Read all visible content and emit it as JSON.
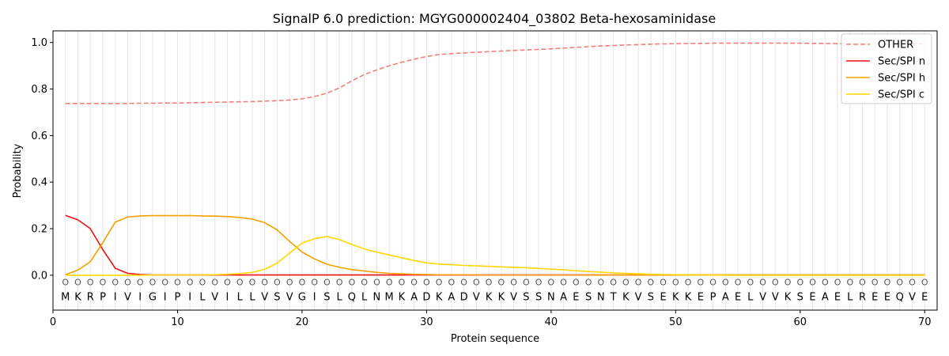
{
  "chart_data": {
    "type": "line",
    "title": "SignalP 6.0 prediction: MGYG000002404_03802 Beta-hexosaminidase",
    "xlabel": "Protein sequence",
    "ylabel": "Probability",
    "xlim": [
      0,
      71
    ],
    "ylim": [
      -0.15,
      1.05
    ],
    "x_ticks": [
      0,
      10,
      20,
      30,
      40,
      50,
      60,
      70
    ],
    "y_ticks": [
      0.0,
      0.2,
      0.4,
      0.6,
      0.8,
      1.0
    ],
    "x_tick_labels": [
      "0",
      "10",
      "20",
      "30",
      "40",
      "50",
      "60",
      "70"
    ],
    "y_tick_labels": [
      "0.0",
      "0.2",
      "0.4",
      "0.6",
      "0.8",
      "1.0"
    ],
    "legend_position": "top-right",
    "sequence": [
      "M",
      "K",
      "R",
      "P",
      "I",
      "V",
      "I",
      "G",
      "I",
      "P",
      "I",
      "L",
      "V",
      "I",
      "L",
      "L",
      "V",
      "S",
      "V",
      "G",
      "I",
      "S",
      "L",
      "Q",
      "L",
      "N",
      "M",
      "K",
      "A",
      "D",
      "K",
      "A",
      "D",
      "V",
      "K",
      "K",
      "V",
      "S",
      "S",
      "N",
      "A",
      "E",
      "S",
      "N",
      "T",
      "K",
      "V",
      "S",
      "E",
      "K",
      "K",
      "E",
      "P",
      "A",
      "E",
      "L",
      "V",
      "V",
      "K",
      "S",
      "E",
      "A",
      "E",
      "L",
      "R",
      "E",
      "E",
      "Q",
      "V",
      "E"
    ],
    "annotation_label": "O",
    "series": [
      {
        "name": "OTHER",
        "color": "#f08080",
        "dash": true,
        "values": [
          0.738,
          0.738,
          0.738,
          0.738,
          0.738,
          0.738,
          0.739,
          0.739,
          0.74,
          0.74,
          0.741,
          0.742,
          0.743,
          0.744,
          0.745,
          0.746,
          0.748,
          0.75,
          0.753,
          0.758,
          0.768,
          0.782,
          0.805,
          0.835,
          0.862,
          0.882,
          0.9,
          0.915,
          0.928,
          0.94,
          0.948,
          0.952,
          0.955,
          0.958,
          0.961,
          0.963,
          0.966,
          0.968,
          0.97,
          0.973,
          0.976,
          0.979,
          0.982,
          0.985,
          0.987,
          0.989,
          0.991,
          0.993,
          0.994,
          0.995,
          0.996,
          0.996,
          0.997,
          0.997,
          0.997,
          0.997,
          0.997,
          0.997,
          0.997,
          0.997,
          0.996,
          0.996,
          0.995,
          0.995,
          0.994,
          0.994,
          0.994,
          0.994,
          0.994,
          0.994
        ]
      },
      {
        "name": "Sec/SPI n",
        "color": "#ee1111",
        "dash": false,
        "values": [
          0.257,
          0.238,
          0.2,
          0.11,
          0.03,
          0.008,
          0.003,
          0.001,
          0.001,
          0.001,
          0.001,
          0.001,
          0.001,
          0.001,
          0.001,
          0.001,
          0.001,
          0.001,
          0.001,
          0.001,
          0.001,
          0.001,
          0.001,
          0.001,
          0.001,
          0.001,
          0.001,
          0.001,
          0.001,
          0.001,
          0.001,
          0.001,
          0.001,
          0.001,
          0.001,
          0.001,
          0.001,
          0.001,
          0.001,
          0.001,
          0.001,
          0.001,
          0.001,
          0.001,
          0.001,
          0.001,
          0.001,
          0.001,
          0.001,
          0.001,
          0.001,
          0.001,
          0.001,
          0.001,
          0.001,
          0.001,
          0.001,
          0.001,
          0.001,
          0.001,
          0.001,
          0.001,
          0.001,
          0.001,
          0.001,
          0.001,
          0.001,
          0.001,
          0.001,
          0.001
        ]
      },
      {
        "name": "Sec/SPI h",
        "color": "#f5a000",
        "dash": false,
        "values": [
          0.002,
          0.022,
          0.058,
          0.14,
          0.228,
          0.25,
          0.255,
          0.256,
          0.256,
          0.256,
          0.256,
          0.255,
          0.254,
          0.252,
          0.248,
          0.241,
          0.226,
          0.195,
          0.145,
          0.1,
          0.07,
          0.047,
          0.034,
          0.024,
          0.018,
          0.012,
          0.008,
          0.006,
          0.004,
          0.003,
          0.002,
          0.002,
          0.002,
          0.001,
          0.001,
          0.001,
          0.001,
          0.001,
          0.001,
          0.001,
          0.001,
          0.001,
          0.001,
          0.001,
          0.001,
          0.001,
          0.001,
          0.001,
          0.001,
          0.001,
          0.001,
          0.001,
          0.001,
          0.001,
          0.001,
          0.001,
          0.001,
          0.001,
          0.001,
          0.001,
          0.001,
          0.001,
          0.001,
          0.001,
          0.001,
          0.001,
          0.001,
          0.001,
          0.001,
          0.001
        ]
      },
      {
        "name": "Sec/SPI c",
        "color": "#ffd700",
        "dash": false,
        "values": [
          0.0,
          0.0,
          0.0,
          0.0,
          0.0,
          0.0,
          0.0,
          0.001,
          0.001,
          0.001,
          0.001,
          0.001,
          0.002,
          0.004,
          0.007,
          0.012,
          0.025,
          0.052,
          0.095,
          0.138,
          0.157,
          0.166,
          0.153,
          0.132,
          0.113,
          0.099,
          0.087,
          0.075,
          0.063,
          0.053,
          0.048,
          0.045,
          0.042,
          0.04,
          0.038,
          0.036,
          0.034,
          0.032,
          0.029,
          0.026,
          0.023,
          0.019,
          0.016,
          0.013,
          0.01,
          0.008,
          0.006,
          0.004,
          0.003,
          0.002,
          0.001,
          0.001,
          0.001,
          0.0,
          0.0,
          0.0,
          0.0,
          0.0,
          0.0,
          0.0,
          0.0,
          0.0,
          0.0,
          0.0,
          0.0,
          0.0,
          0.0,
          0.0,
          0.0,
          0.0
        ]
      }
    ]
  }
}
